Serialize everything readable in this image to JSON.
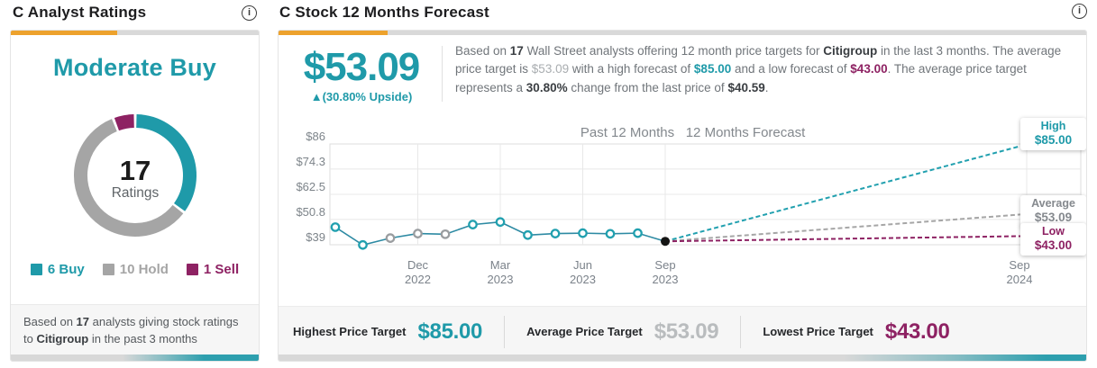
{
  "colors": {
    "teal": "#1f9aa9",
    "gray_hold": "#a5a5a5",
    "purple": "#8e2263",
    "orange": "#eda22d",
    "line_teal": "#2d8aa3",
    "marker_teal": "#21a0af",
    "marker_gray": "#9a9da0",
    "avg_gray": "#a6a6a6",
    "value_gray": "#b9bcbe",
    "avg_label_gray": "#85898e",
    "black_dot": "#141414"
  },
  "icons": {
    "info_glyph": "i"
  },
  "left_panel": {
    "title": "C Analyst Ratings",
    "consensus": "Moderate Buy",
    "total_count": "17",
    "total_label": "Ratings",
    "ratings": [
      {
        "label": "6 Buy",
        "count": 6,
        "color_key": "teal"
      },
      {
        "label": "10 Hold",
        "count": 10,
        "color_key": "gray_hold"
      },
      {
        "label": "1 Sell",
        "count": 1,
        "color_key": "purple"
      }
    ],
    "footnote_parts": [
      {
        "t": "Based on ",
        "s": "n"
      },
      {
        "t": "17",
        "s": "b"
      },
      {
        "t": " analysts giving stock ratings to ",
        "s": "n"
      },
      {
        "t": "Citigroup",
        "s": "b"
      },
      {
        "t": " in the past 3 months",
        "s": "n"
      }
    ]
  },
  "right_panel": {
    "title": "C Stock 12 Months Forecast",
    "price_target": "$53.09",
    "upside": "▲(30.80% Upside)",
    "summary_parts": [
      {
        "t": "Based on ",
        "s": "n"
      },
      {
        "t": "17",
        "s": "b"
      },
      {
        "t": " Wall Street analysts offering 12 month price targets for ",
        "s": "n"
      },
      {
        "t": "Citigroup",
        "s": "b"
      },
      {
        "t": " in the last 3 months. The average price target is ",
        "s": "n"
      },
      {
        "t": "$53.09",
        "s": "gray"
      },
      {
        "t": " with a high forecast of ",
        "s": "n"
      },
      {
        "t": "$85.00",
        "s": "teal"
      },
      {
        "t": " and a low forecast of ",
        "s": "n"
      },
      {
        "t": "$43.00",
        "s": "purple"
      },
      {
        "t": ". The average price target represents a ",
        "s": "n"
      },
      {
        "t": "30.80%",
        "s": "b"
      },
      {
        "t": " change from the last price of ",
        "s": "n"
      },
      {
        "t": "$40.59",
        "s": "b"
      },
      {
        "t": ".",
        "s": "n"
      }
    ],
    "stats": [
      {
        "label": "Highest Price Target",
        "value": "$85.00",
        "color_key": "teal"
      },
      {
        "label": "Average Price Target",
        "value": "$53.09",
        "color_key": "value_gray"
      },
      {
        "label": "Lowest Price Target",
        "value": "$43.00",
        "color_key": "purple"
      }
    ]
  },
  "chart_data": {
    "type": "line",
    "title": "C Stock 12 Months Forecast",
    "section_labels": [
      "Past 12 Months",
      "12 Months Forecast"
    ],
    "ylim": [
      39,
      86
    ],
    "grid": true,
    "legend_position": "none",
    "y_ticks": [
      {
        "value": 86,
        "label": "$86"
      },
      {
        "value": 74.3,
        "label": "$74.3"
      },
      {
        "value": 62.5,
        "label": "$62.5"
      },
      {
        "value": 50.8,
        "label": "$50.8"
      },
      {
        "value": 39,
        "label": "$39"
      }
    ],
    "x_ticks": [
      {
        "month_index": 3,
        "line1": "Dec",
        "line2": "2022"
      },
      {
        "month_index": 6,
        "line1": "Mar",
        "line2": "2023"
      },
      {
        "month_index": 9,
        "line1": "Jun",
        "line2": "2023"
      },
      {
        "month_index": 12,
        "line1": "Sep",
        "line2": "2023"
      },
      {
        "month_index": 24,
        "line1": "Sep",
        "line2": "2024"
      }
    ],
    "past_series": {
      "name": "Share price (past 12 months)",
      "month_index": [
        0,
        1,
        2,
        3,
        4,
        5,
        6,
        7,
        8,
        9,
        10,
        11
      ],
      "values": [
        47.2,
        38.9,
        42.1,
        44.2,
        43.9,
        48.4,
        49.6,
        43.5,
        44.2,
        44.4,
        44.1,
        44.4
      ],
      "marker_colors": [
        "teal",
        "teal",
        "gray",
        "gray",
        "gray",
        "teal",
        "teal",
        "teal",
        "teal",
        "teal",
        "teal",
        "teal"
      ]
    },
    "last_price": {
      "month_index": 12,
      "value": 40.59,
      "value_label": "$40.59"
    },
    "forecast_lines": [
      {
        "name": "High",
        "value": 85,
        "label": "High",
        "value_label": "$85.00",
        "color_key": "marker_teal",
        "text_color_key": "teal"
      },
      {
        "name": "Average",
        "value": 53.09,
        "label": "Average",
        "value_label": "$53.09",
        "color_key": "avg_gray",
        "text_color_key": "avg_label_gray"
      },
      {
        "name": "Low",
        "value": 43,
        "label": "Low",
        "value_label": "$43.00",
        "color_key": "purple",
        "text_color_key": "purple"
      }
    ]
  }
}
